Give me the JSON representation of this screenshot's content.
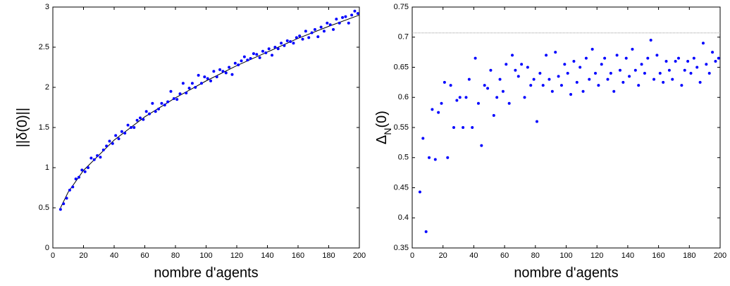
{
  "chart_data": [
    {
      "type": "scatter",
      "xlabel": "nombre d'agents",
      "ylabel_parts": [
        "||δ(0)||"
      ],
      "xlim": [
        0,
        200
      ],
      "ylim": [
        0,
        3
      ],
      "xticks": [
        0,
        20,
        40,
        60,
        80,
        100,
        120,
        140,
        160,
        180,
        200
      ],
      "yticks": [
        0,
        0.5,
        1,
        1.5,
        2,
        2.5,
        3
      ],
      "x": [
        5,
        7,
        9,
        11,
        13,
        15,
        17,
        19,
        21,
        23,
        25,
        27,
        29,
        31,
        33,
        35,
        37,
        39,
        41,
        43,
        45,
        47,
        49,
        51,
        53,
        55,
        57,
        59,
        61,
        63,
        65,
        67,
        69,
        71,
        73,
        75,
        77,
        79,
        81,
        83,
        85,
        87,
        89,
        91,
        93,
        95,
        97,
        99,
        101,
        103,
        105,
        107,
        109,
        111,
        113,
        115,
        117,
        119,
        121,
        123,
        125,
        127,
        129,
        131,
        133,
        135,
        137,
        139,
        141,
        143,
        145,
        147,
        149,
        151,
        153,
        155,
        157,
        159,
        161,
        163,
        165,
        167,
        169,
        171,
        173,
        175,
        177,
        179,
        181,
        183,
        185,
        187,
        189,
        191,
        193,
        195,
        197,
        199
      ],
      "values": [
        0.48,
        0.55,
        0.62,
        0.72,
        0.76,
        0.86,
        0.88,
        0.97,
        0.95,
        1.0,
        1.12,
        1.1,
        1.15,
        1.13,
        1.22,
        1.27,
        1.33,
        1.3,
        1.4,
        1.36,
        1.45,
        1.43,
        1.53,
        1.5,
        1.5,
        1.59,
        1.62,
        1.6,
        1.7,
        1.67,
        1.8,
        1.7,
        1.73,
        1.8,
        1.78,
        1.82,
        1.95,
        1.86,
        1.85,
        1.92,
        2.05,
        1.93,
        1.99,
        2.05,
        2.0,
        2.15,
        2.05,
        2.13,
        2.11,
        2.08,
        2.2,
        2.13,
        2.22,
        2.2,
        2.18,
        2.25,
        2.16,
        2.3,
        2.28,
        2.33,
        2.38,
        2.34,
        2.36,
        2.42,
        2.41,
        2.37,
        2.45,
        2.43,
        2.48,
        2.4,
        2.5,
        2.48,
        2.55,
        2.52,
        2.58,
        2.57,
        2.55,
        2.62,
        2.64,
        2.6,
        2.7,
        2.62,
        2.68,
        2.72,
        2.63,
        2.75,
        2.7,
        2.8,
        2.78,
        2.72,
        2.85,
        2.8,
        2.87,
        2.88,
        2.8,
        2.9,
        2.95,
        2.92
      ],
      "color": "#0000ff",
      "fit": {
        "x": [
          5,
          10,
          20,
          40,
          60,
          80,
          100,
          120,
          140,
          160,
          180,
          200
        ],
        "values": [
          0.5,
          0.695,
          0.966,
          1.343,
          1.633,
          1.87,
          2.08,
          2.27,
          2.44,
          2.61,
          2.76,
          2.9
        ],
        "color": "#000000"
      }
    },
    {
      "type": "scatter",
      "xlabel": "nombre d'agents",
      "ylabel_parts": [
        "Δ",
        "N",
        "(0)"
      ],
      "xlim": [
        0,
        200
      ],
      "ylim": [
        0.35,
        0.75
      ],
      "xticks": [
        0,
        20,
        40,
        60,
        80,
        100,
        120,
        140,
        160,
        180,
        200
      ],
      "yticks": [
        0.35,
        0.4,
        0.45,
        0.5,
        0.55,
        0.6,
        0.65,
        0.7,
        0.75
      ],
      "x": [
        5,
        7,
        9,
        11,
        13,
        15,
        17,
        19,
        21,
        23,
        25,
        27,
        29,
        31,
        33,
        35,
        37,
        39,
        41,
        43,
        45,
        47,
        49,
        51,
        53,
        55,
        57,
        59,
        61,
        63,
        65,
        67,
        69,
        71,
        73,
        75,
        77,
        79,
        81,
        83,
        85,
        87,
        89,
        91,
        93,
        95,
        97,
        99,
        101,
        103,
        105,
        107,
        109,
        111,
        113,
        115,
        117,
        119,
        121,
        123,
        125,
        127,
        129,
        131,
        133,
        135,
        137,
        139,
        141,
        143,
        145,
        147,
        149,
        151,
        153,
        155,
        157,
        159,
        161,
        163,
        165,
        167,
        169,
        171,
        173,
        175,
        177,
        179,
        181,
        183,
        185,
        187,
        189,
        191,
        193,
        195,
        197,
        199
      ],
      "values": [
        0.443,
        0.532,
        0.377,
        0.5,
        0.58,
        0.497,
        0.575,
        0.59,
        0.625,
        0.5,
        0.62,
        0.55,
        0.595,
        0.6,
        0.55,
        0.6,
        0.63,
        0.55,
        0.665,
        0.59,
        0.52,
        0.62,
        0.615,
        0.645,
        0.57,
        0.6,
        0.63,
        0.61,
        0.655,
        0.59,
        0.67,
        0.645,
        0.635,
        0.655,
        0.6,
        0.65,
        0.62,
        0.63,
        0.56,
        0.64,
        0.62,
        0.67,
        0.63,
        0.61,
        0.675,
        0.635,
        0.62,
        0.655,
        0.64,
        0.605,
        0.66,
        0.625,
        0.65,
        0.61,
        0.665,
        0.63,
        0.68,
        0.64,
        0.62,
        0.655,
        0.665,
        0.63,
        0.64,
        0.61,
        0.67,
        0.645,
        0.625,
        0.665,
        0.635,
        0.68,
        0.645,
        0.62,
        0.655,
        0.64,
        0.665,
        0.695,
        0.63,
        0.67,
        0.64,
        0.625,
        0.66,
        0.645,
        0.63,
        0.66,
        0.665,
        0.62,
        0.645,
        0.66,
        0.64,
        0.665,
        0.65,
        0.625,
        0.69,
        0.655,
        0.64,
        0.675,
        0.66,
        0.665
      ],
      "color": "#0000ff",
      "hline": 0.707,
      "hline_color": "#999999"
    }
  ]
}
